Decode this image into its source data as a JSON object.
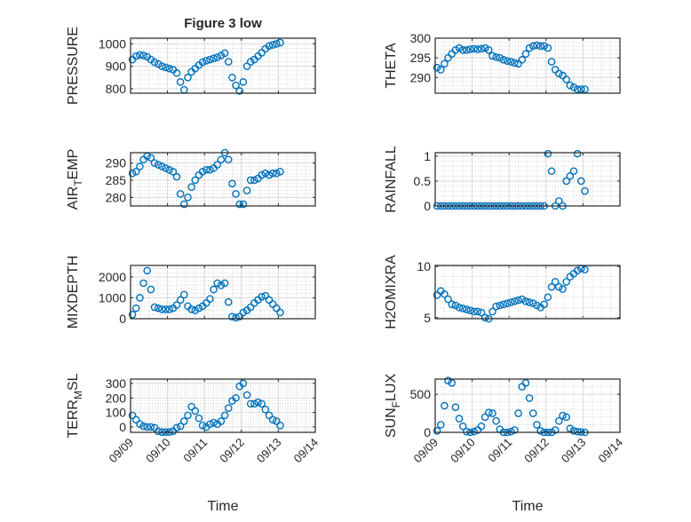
{
  "figure_title": "Figure 3 low",
  "xlabel": "Time",
  "x_tick_labels": [
    "09/09",
    "09/10",
    "09/11",
    "09/12",
    "09/13",
    "09/14"
  ],
  "colors": {
    "marker": "#0072BD",
    "axes": "#262626",
    "grid": "#d9d9d9"
  },
  "chart_data": {
    "type": "scatter",
    "x_unit": "days since 09/09 00:00",
    "xlim": [
      0,
      5
    ],
    "x": [
      0.05,
      0.15,
      0.25,
      0.35,
      0.45,
      0.55,
      0.65,
      0.75,
      0.85,
      0.95,
      1.05,
      1.15,
      1.25,
      1.35,
      1.45,
      1.55,
      1.65,
      1.75,
      1.85,
      1.95,
      2.05,
      2.15,
      2.25,
      2.35,
      2.45,
      2.55,
      2.65,
      2.75,
      2.85,
      2.95,
      3.05,
      3.15,
      3.25,
      3.35,
      3.45,
      3.55,
      3.65,
      3.75,
      3.85,
      3.95,
      4.05
    ],
    "panels": [
      {
        "ylabel": "PRESSURE",
        "ylim": [
          780,
          1025
        ],
        "yticks": [
          800,
          900,
          1000
        ],
        "ytick_labels": [
          "800",
          "900",
          "1000"
        ],
        "values": [
          930,
          945,
          950,
          948,
          942,
          930,
          918,
          910,
          900,
          895,
          890,
          885,
          870,
          830,
          795,
          850,
          875,
          890,
          905,
          918,
          925,
          930,
          935,
          940,
          948,
          958,
          920,
          850,
          815,
          790,
          830,
          900,
          920,
          930,
          945,
          960,
          978,
          990,
          995,
          1000,
          1005
        ]
      },
      {
        "ylabel": "THETA",
        "ylim": [
          286,
          300
        ],
        "yticks": [
          290,
          295,
          300
        ],
        "ytick_labels": [
          "290",
          "295",
          "300"
        ],
        "values": [
          292.5,
          292,
          293.5,
          295,
          296,
          297,
          297.5,
          297,
          297,
          297.2,
          297.3,
          297.2,
          297.3,
          297.5,
          297,
          295.5,
          295.2,
          295,
          294.5,
          294.2,
          294,
          293.7,
          293.5,
          294.5,
          296,
          297.5,
          298,
          298.2,
          298,
          298,
          297.5,
          294,
          292,
          291,
          290.5,
          289.5,
          288,
          287.5,
          287,
          287,
          287
        ]
      },
      {
        "ylabel": "AIR_TEMP",
        "ylim": [
          277.5,
          293
        ],
        "yticks": [
          280,
          285,
          290
        ],
        "ytick_labels": [
          "280",
          "285",
          "290"
        ],
        "values": [
          287,
          287.5,
          289,
          291,
          292,
          291.5,
          290,
          289.5,
          289,
          288.5,
          288,
          287.5,
          286,
          281,
          278,
          280,
          283,
          285,
          286.5,
          287.5,
          288,
          288,
          288.5,
          289.5,
          291,
          293,
          291,
          284,
          281,
          278,
          278,
          282,
          285,
          285,
          285.5,
          286.5,
          287,
          286.5,
          287,
          287,
          287.5
        ]
      },
      {
        "ylabel": "RAINFALL",
        "ylim": [
          0,
          1.07
        ],
        "yticks": [
          0,
          0.5,
          1
        ],
        "ytick_labels": [
          "0",
          "0.5",
          "1"
        ],
        "values": [
          0,
          0,
          0,
          0,
          0,
          0,
          0,
          0,
          0,
          0,
          0,
          0,
          0,
          0,
          0,
          0,
          0,
          0,
          0,
          0,
          0,
          0,
          0,
          0,
          0,
          0,
          0,
          0,
          0,
          0,
          1.05,
          0.7,
          0,
          0.1,
          0,
          0.5,
          0.6,
          0.7,
          1.05,
          0.5,
          0.3
        ]
      },
      {
        "ylabel": "MIXDEPTH",
        "ylim": [
          0,
          2550
        ],
        "yticks": [
          0,
          1000,
          2000
        ],
        "ytick_labels": [
          "0",
          "1000",
          "2000"
        ],
        "values": [
          200,
          500,
          1000,
          1700,
          2300,
          1400,
          550,
          500,
          450,
          450,
          450,
          500,
          650,
          900,
          1150,
          600,
          450,
          400,
          500,
          600,
          750,
          950,
          1400,
          1700,
          1600,
          1700,
          800,
          100,
          50,
          100,
          300,
          400,
          550,
          750,
          900,
          1050,
          1100,
          900,
          700,
          500,
          300
        ]
      },
      {
        "ylabel": "H2OMIXRA",
        "ylim": [
          4.9,
          10.1
        ],
        "yticks": [
          5,
          10
        ],
        "ytick_labels": [
          "5",
          "10"
        ],
        "values": [
          7.2,
          7.6,
          7.3,
          6.8,
          6.3,
          6.2,
          6.0,
          5.9,
          5.8,
          5.7,
          5.6,
          5.6,
          5.5,
          5.0,
          4.9,
          5.6,
          6.1,
          6.2,
          6.3,
          6.4,
          6.5,
          6.6,
          6.7,
          6.8,
          6.6,
          6.5,
          6.4,
          6.2,
          6.0,
          6.3,
          7.0,
          8.0,
          8.5,
          8.0,
          7.8,
          8.5,
          9.0,
          9.3,
          9.6,
          9.8,
          9.7
        ]
      },
      {
        "ylabel": "TERR_MSL",
        "ylim": [
          -37,
          330
        ],
        "yticks": [
          0,
          100,
          200,
          300
        ],
        "ytick_labels": [
          "0",
          "100",
          "200",
          "300"
        ],
        "values": [
          80,
          50,
          20,
          5,
          0,
          0,
          -5,
          -30,
          -35,
          -35,
          -35,
          -30,
          -5,
          5,
          40,
          80,
          140,
          110,
          60,
          10,
          0,
          20,
          30,
          20,
          40,
          80,
          130,
          180,
          200,
          280,
          300,
          220,
          160,
          160,
          170,
          160,
          120,
          80,
          50,
          40,
          10
        ]
      },
      {
        "ylabel": "SUN_FLUX",
        "ylim": [
          0,
          700
        ],
        "yticks": [
          0,
          500
        ],
        "ytick_labels": [
          "0",
          "500"
        ],
        "values": [
          20,
          100,
          350,
          680,
          650,
          330,
          180,
          80,
          10,
          0,
          10,
          30,
          80,
          200,
          260,
          250,
          150,
          40,
          0,
          0,
          10,
          30,
          250,
          600,
          650,
          450,
          250,
          100,
          20,
          0,
          0,
          0,
          30,
          150,
          220,
          200,
          50,
          20,
          10,
          5,
          0
        ]
      }
    ]
  }
}
